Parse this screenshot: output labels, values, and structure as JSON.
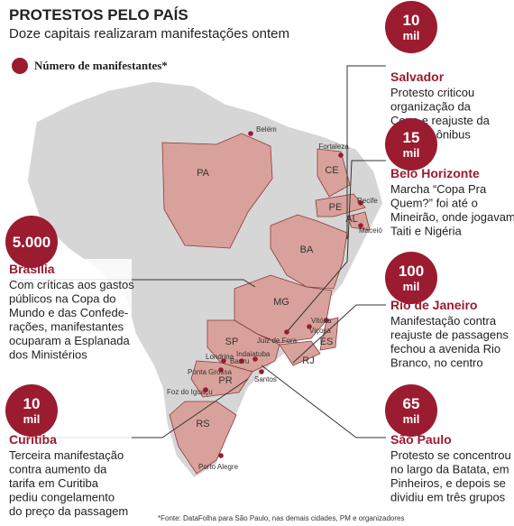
{
  "header": {
    "title": "PROTESTOS PELO PAÍS",
    "subtitle": "Doze capitais realizaram manifestações ontem",
    "legend": "Número de manifestantes*"
  },
  "callouts": [
    {
      "amount": [
        "10",
        "mil"
      ],
      "city": "Salvador",
      "lines": [
        "Protesto criticou",
        "organização da",
        "Copa e reajuste da",
        "tarifa de ônibus"
      ]
    },
    {
      "amount": [
        "15",
        "mil"
      ],
      "city": "Belo Horizonte",
      "lines": [
        "Marcha “Copa Pra",
        "Quem?” foi até o",
        "Mineirão, onde jogavam",
        "Taiti e Nigéria"
      ]
    },
    {
      "amount": [
        "5.000"
      ],
      "city": "Brasília",
      "lines": [
        "Com críticas aos gastos",
        "públicos na Copa do",
        "Mundo e das Confede-",
        "rações, manifestantes",
        "ocuparam a Esplanada",
        "dos Ministérios"
      ]
    },
    {
      "amount": [
        "100",
        "mil"
      ],
      "city": "Rio de Janeiro",
      "lines": [
        "Manifestação contra",
        "reajuste de passagens",
        "fechou a avenida Rio",
        "Branco, no centro"
      ]
    },
    {
      "amount": [
        "10",
        "mil"
      ],
      "city": "Curitiba",
      "lines": [
        "Terceira manifestação",
        "contra aumento da",
        "tarifa em Curitiba",
        "pediu congelamento",
        "do preço da passagem"
      ]
    },
    {
      "amount": [
        "65",
        "mil"
      ],
      "city": "São Paulo",
      "lines": [
        "Protesto se concentrou",
        "no largo da Batata, em",
        "Pinheiros, e depois se",
        "dividiu em três grupos"
      ]
    }
  ],
  "map": {
    "states": [
      "PA",
      "CE",
      "PE",
      "AL",
      "BA",
      "MG",
      "ES",
      "RJ",
      "SP",
      "PR",
      "RS"
    ],
    "cities": [
      "Belém",
      "Fortaleza",
      "Recife",
      "Maceió",
      "Juiz de Fora",
      "Viçosa",
      "Vitória",
      "Indaiatuba",
      "Londrina",
      "Bauru",
      "Ponta Grossa",
      "Santos",
      "Foz do Iguaçu",
      "Porto Alegre"
    ]
  },
  "footnote": "*Fonte: DataFolha para São Paulo, nas demais cidades, PM e organizadores"
}
